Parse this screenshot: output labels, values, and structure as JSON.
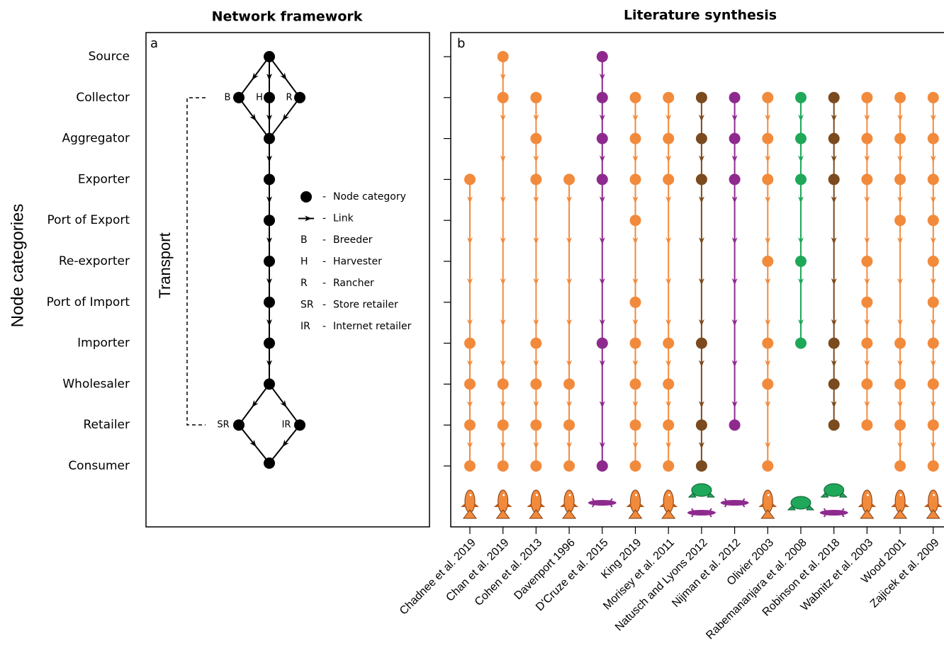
{
  "panel_a": {
    "title": "Network framework",
    "label": "a",
    "y_axis_label": "Node categories",
    "node_categories": [
      "Source",
      "Collector",
      "Aggregator",
      "Exporter",
      "Port of Export",
      "Re-exporter",
      "Port of Import",
      "Importer",
      "Wholesaler",
      "Retailer",
      "Consumer"
    ],
    "transport_label": "Transport",
    "separator": "-",
    "legend": [
      {
        "text": "Node category"
      },
      {
        "text": "Link"
      },
      {
        "key": "B",
        "text": "Breeder"
      },
      {
        "key": "H",
        "text": "Harvester"
      },
      {
        "key": "R",
        "text": "Rancher"
      },
      {
        "key": "SR",
        "text": "Store retailer"
      },
      {
        "key": "IR",
        "text": "Internet retailer"
      }
    ]
  },
  "panel_b": {
    "title": "Literature synthesis",
    "label": "b",
    "studies": [
      {
        "name": "Chadnee et al. 2019",
        "color": "#f28a3c",
        "nodes": [
          "Exporter",
          "Importer",
          "Wholesaler",
          "Retailer",
          "Consumer"
        ]
      },
      {
        "name": "Chan et al. 2019",
        "color": "#f28a3c",
        "nodes": [
          "Source",
          "Collector",
          "Wholesaler",
          "Retailer",
          "Consumer"
        ]
      },
      {
        "name": "Cohen et al. 2013",
        "color": "#f28a3c",
        "nodes": [
          "Collector",
          "Aggregator",
          "Exporter",
          "Importer",
          "Wholesaler",
          "Retailer",
          "Consumer"
        ]
      },
      {
        "name": "Davenport 1996",
        "color": "#f28a3c",
        "nodes": [
          "Exporter",
          "Wholesaler",
          "Retailer",
          "Consumer"
        ]
      },
      {
        "name": "D'Cruze et al. 2015",
        "color": "#8e2a8e",
        "nodes": [
          "Source",
          "Collector",
          "Aggregator",
          "Exporter",
          "Importer",
          "Consumer"
        ]
      },
      {
        "name": "King 2019",
        "color": "#f28a3c",
        "nodes": [
          "Collector",
          "Aggregator",
          "Exporter",
          "Port of Export",
          "Port of Import",
          "Importer",
          "Wholesaler",
          "Retailer",
          "Consumer"
        ]
      },
      {
        "name": "Morisey et al. 2011",
        "color": "#f28a3c",
        "nodes": [
          "Collector",
          "Aggregator",
          "Exporter",
          "Importer",
          "Wholesaler",
          "Retailer",
          "Consumer"
        ]
      },
      {
        "name": "Natusch and Lyons 2012",
        "color": "#7b4a1e",
        "nodes": [
          "Collector",
          "Aggregator",
          "Exporter",
          "Importer",
          "Retailer",
          "Consumer"
        ]
      },
      {
        "name": "Nijman et al. 2012",
        "color": "#8e2a8e",
        "nodes": [
          "Collector",
          "Aggregator",
          "Exporter",
          "Retailer"
        ]
      },
      {
        "name": "Olivier 2003",
        "color": "#f28a3c",
        "nodes": [
          "Collector",
          "Aggregator",
          "Exporter",
          "Re-exporter",
          "Importer",
          "Wholesaler",
          "Consumer"
        ]
      },
      {
        "name": "Rabemananjara et al. 2008",
        "color": "#1fa85a",
        "nodes": [
          "Collector",
          "Aggregator",
          "Exporter",
          "Re-exporter",
          "Importer"
        ]
      },
      {
        "name": "Robinson et al. 2018",
        "color": "#7b4a1e",
        "nodes": [
          "Collector",
          "Aggregator",
          "Exporter",
          "Importer",
          "Wholesaler",
          "Retailer"
        ]
      },
      {
        "name": "Wabnitz et al. 2003",
        "color": "#f28a3c",
        "nodes": [
          "Collector",
          "Aggregator",
          "Exporter",
          "Re-exporter",
          "Port of Import",
          "Importer",
          "Wholesaler",
          "Retailer"
        ]
      },
      {
        "name": "Wood 2001",
        "color": "#f28a3c",
        "nodes": [
          "Collector",
          "Aggregator",
          "Exporter",
          "Port of Export",
          "Importer",
          "Wholesaler",
          "Retailer",
          "Consumer"
        ]
      },
      {
        "name": "Zajicek et al. 2009",
        "color": "#f28a3c",
        "nodes": [
          "Collector",
          "Aggregator",
          "Exporter",
          "Port of Export",
          "Re-exporter",
          "Port of Import",
          "Importer",
          "Wholesaler",
          "Retailer",
          "Consumer"
        ]
      }
    ]
  }
}
